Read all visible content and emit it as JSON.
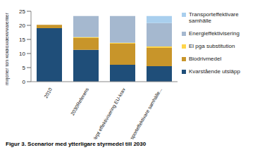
{
  "chart_data": {
    "type": "bar",
    "title": "Figur 3. Scenarior med ytterligare styrmedel till 2030",
    "y_label": "miljoner ton koldioxidekvivalenter",
    "categories": [
      "2010",
      "2030Referens",
      "Skärpt effektivisering EU-krav",
      "Transporteffektivare samhälle..."
    ],
    "stacked": true,
    "grid": false,
    "legend": "right",
    "ylim": [
      0,
      25
    ],
    "yticks": [
      0,
      5,
      10,
      15,
      20,
      25
    ],
    "series": [
      {
        "name": "Kvarstående utsläpp",
        "color": "#1f4e79",
        "values": [
          19,
          11.3,
          6,
          5.5
        ]
      },
      {
        "name": "Biodrivmedel",
        "color": "#c8952a",
        "values": [
          1.2,
          4.2,
          7.5,
          6.5
        ]
      },
      {
        "name": "El pga substitution",
        "color": "#ffd54a",
        "values": [
          0,
          0.3,
          0.3,
          0.5
        ]
      },
      {
        "name": "Energieffektivisering",
        "color": "#a5b8cf",
        "values": [
          0,
          7.5,
          9.5,
          8.3
        ]
      },
      {
        "name": "Transporteffektivare samhälle",
        "color": "#a9cfee",
        "values": [
          0,
          0,
          0,
          2.5
        ]
      }
    ]
  }
}
